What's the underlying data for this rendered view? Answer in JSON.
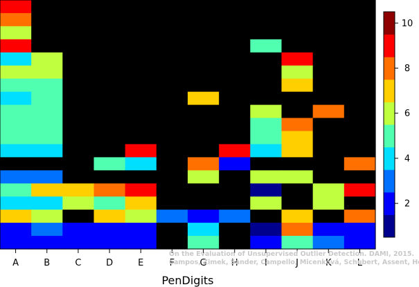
{
  "chart_data": {
    "type": "heatmap",
    "xlabel": "PenDigits",
    "categories": [
      "A",
      "B",
      "C",
      "D",
      "E",
      "F",
      "G",
      "H",
      "I",
      "J",
      "K",
      "L"
    ],
    "colorbar": {
      "ticks": [
        2,
        4,
        6,
        8,
        10
      ],
      "min": 0.5,
      "max": 10.5
    },
    "colors": [
      "#00008f",
      "#0000ff",
      "#0070ff",
      "#00dfff",
      "#50ffaf",
      "#c0ff40",
      "#ffcf00",
      "#ff7000",
      "#ff0000",
      "#8f0000"
    ],
    "grid_ticks": [
      "8 10 10 10 10 10 10 10 10 10 10 10",
      "7 10 10 10 10 10 10 10 10 10 10 10",
      "5 10 10 10 10 10 10 10 10 10 10 10",
      "8 10 10 10 10 10 10 10 4 10 10 10",
      "3 5 10 10 10 10 10 10 10 8 10 10",
      "5 5 10 10 10 10 10 10 10 5 10 10",
      "4 4 10 10 10 10 10 10 10 6 10 10",
      "3 4 10 10 10 10 6 10 10 10 10 10",
      "4 4 10 10 10 10 10 10 5 10 7 10",
      "4 4 10 10 10 10 10 10 4 7 10 10",
      "4 4 10 10 10 10 10 10 4 6 10 10",
      "3 3 10 10 8 10 10 8 3 6 10 10",
      "10 10 10 4 3 10 7 1 10 10 10 7",
      "2 2 10 10 10 10 5 10 5 5 10 10",
      "4 6 6 7 8 10 10 10 0 10 5 8",
      "3 3 5 4 6 10 10 10 5 10 5 10",
      "6 5 10 6 5 2 1 2 10 6 10 7",
      "1 2 1 1 1 10 3 10 0 7 1 1",
      "1 1 1 1 1 10 4 10 1 4 2 1"
    ],
    "citation": {
      "line1": "On the Evaluation of Unsupervised Outlier Detection. DAMI, 2015.",
      "line2": "Campos, Zimek, Sander, Campello, Micenková, Schubert, Assent, Houle"
    }
  }
}
